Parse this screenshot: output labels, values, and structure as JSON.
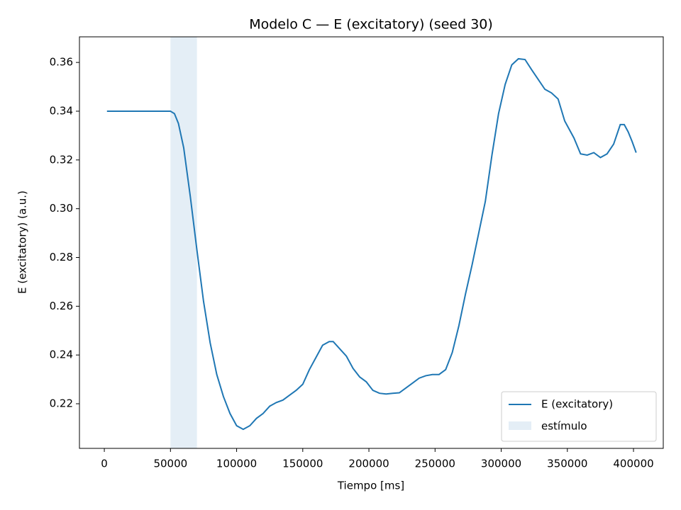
{
  "chart_data": {
    "type": "line",
    "title": "Modelo C — E (excitatory) (seed 30)",
    "x_label": "Tiempo [ms]",
    "y_label": "E (excitatory) (a.u.)",
    "x": [
      2000,
      50000,
      53000,
      56000,
      60000,
      65000,
      70000,
      75000,
      80000,
      85000,
      90000,
      95000,
      100000,
      105000,
      110000,
      115000,
      120000,
      125000,
      130000,
      135000,
      140000,
      145000,
      150000,
      155000,
      160000,
      165000,
      170000,
      173000,
      178000,
      183000,
      188000,
      193000,
      198000,
      203000,
      208000,
      213000,
      218000,
      223000,
      228000,
      233000,
      238000,
      243000,
      248000,
      253000,
      258000,
      263000,
      268000,
      273000,
      278000,
      283000,
      288000,
      293000,
      298000,
      303000,
      308000,
      313000,
      318000,
      323000,
      328000,
      333000,
      338000,
      343000,
      348000,
      355000,
      360000,
      365000,
      370000,
      375000,
      380000,
      385000,
      390000,
      393000,
      396000,
      399000,
      402000
    ],
    "series": [
      {
        "name": "E (excitatory)",
        "color": "#1f77b4",
        "values": [
          0.34,
          0.34,
          0.339,
          0.335,
          0.325,
          0.305,
          0.283,
          0.262,
          0.245,
          0.232,
          0.223,
          0.216,
          0.211,
          0.2095,
          0.211,
          0.214,
          0.216,
          0.219,
          0.2205,
          0.2215,
          0.2235,
          0.2255,
          0.228,
          0.234,
          0.239,
          0.244,
          0.2455,
          0.2455,
          0.2425,
          0.2395,
          0.2345,
          0.231,
          0.229,
          0.2255,
          0.2243,
          0.224,
          0.2243,
          0.2245,
          0.2265,
          0.2285,
          0.2305,
          0.2315,
          0.232,
          0.232,
          0.234,
          0.241,
          0.252,
          0.265,
          0.277,
          0.29,
          0.303,
          0.322,
          0.339,
          0.351,
          0.359,
          0.3615,
          0.3612,
          0.357,
          0.353,
          0.349,
          0.3475,
          0.345,
          0.336,
          0.329,
          0.3225,
          0.322,
          0.323,
          0.321,
          0.3225,
          0.3265,
          0.3345,
          0.3345,
          0.3315,
          0.3275,
          0.323
        ]
      }
    ],
    "span": {
      "name": "estímulo",
      "x0": 50000,
      "x1": 70000,
      "color": "#1f77b4"
    },
    "xlim": [
      -18800,
      422500
    ],
    "xticks": [
      0,
      50000,
      100000,
      150000,
      200000,
      250000,
      300000,
      350000,
      400000
    ],
    "ylim": [
      0.2017,
      0.3705
    ],
    "yticks": [
      0.22,
      0.24,
      0.26,
      0.28,
      {
        "value": 0.3,
        "label": "0.30"
      },
      0.32,
      0.34,
      0.36
    ],
    "legend": "lower right"
  }
}
